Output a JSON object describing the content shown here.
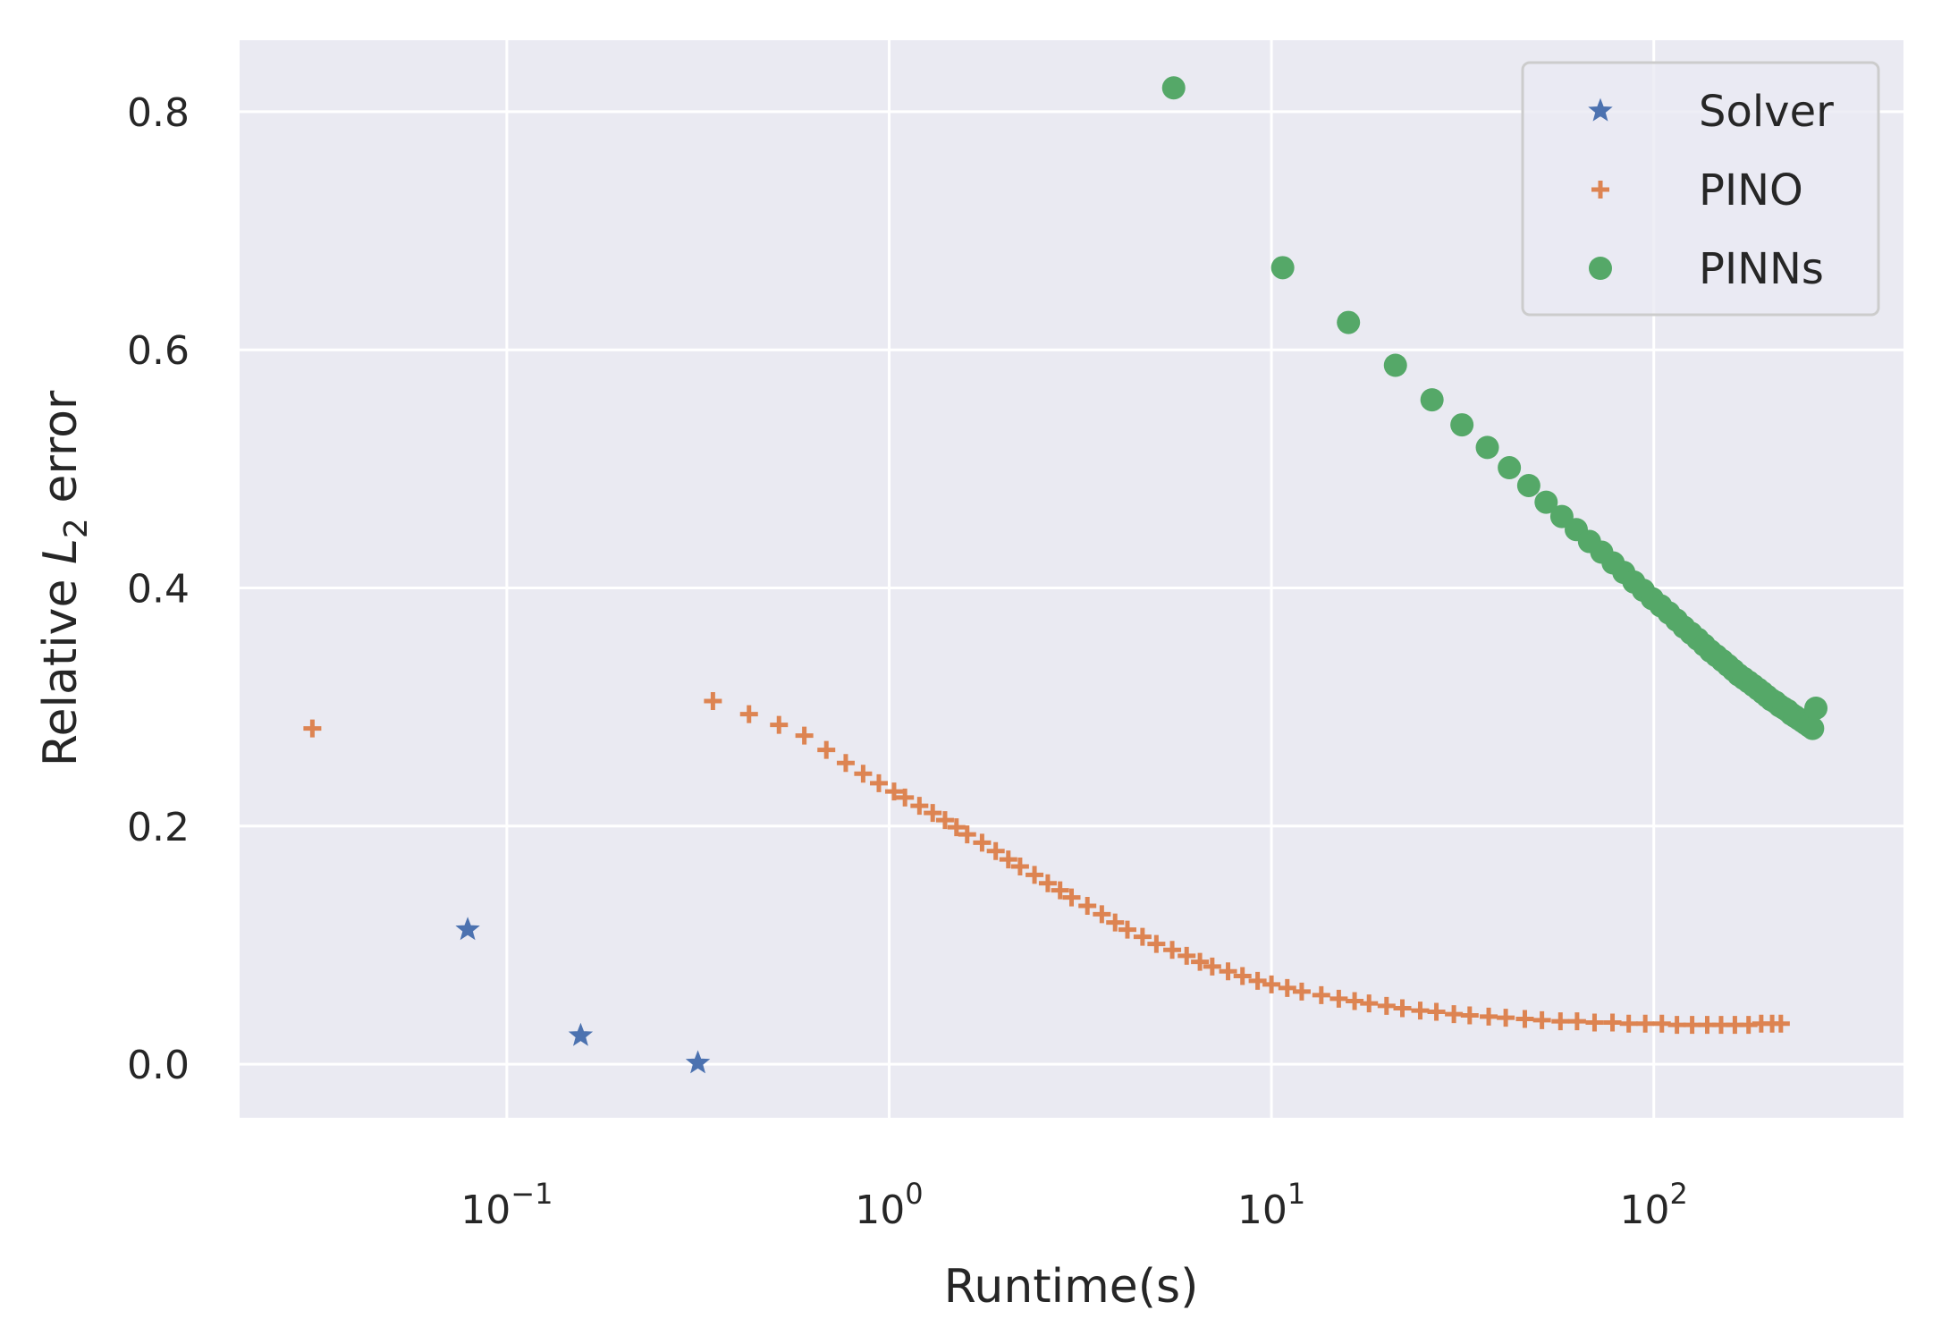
{
  "chart_data": {
    "type": "scatter",
    "xscale": "log",
    "xlim": [
      0.02,
      450
    ],
    "ylim": [
      -0.045,
      0.86
    ],
    "xlabel": "Runtime(s)",
    "ylabel_pre": "Relative ",
    "ylabel_var": "L",
    "ylabel_sub": "2",
    "ylabel_post": " error",
    "grid": true,
    "legend_position": "top-right",
    "x_ticks": [
      {
        "value": 0.1,
        "base": "10",
        "exp": "−1"
      },
      {
        "value": 1,
        "base": "10",
        "exp": "0"
      },
      {
        "value": 10,
        "base": "10",
        "exp": "1"
      },
      {
        "value": 100,
        "base": "10",
        "exp": "2"
      }
    ],
    "y_ticks": [
      {
        "value": 0.0,
        "label": "0.0"
      },
      {
        "value": 0.2,
        "label": "0.2"
      },
      {
        "value": 0.4,
        "label": "0.4"
      },
      {
        "value": 0.6,
        "label": "0.6"
      },
      {
        "value": 0.8,
        "label": "0.8"
      }
    ],
    "series": [
      {
        "name": "Solver",
        "marker": "star",
        "color": "#4c72b0",
        "points": [
          [
            0.079,
            0.113
          ],
          [
            0.156,
            0.024
          ],
          [
            0.316,
            0.001
          ]
        ]
      },
      {
        "name": "PINO",
        "marker": "plus",
        "color": "#dd8452",
        "points": [
          [
            0.031,
            0.282
          ],
          [
            0.346,
            0.305
          ],
          [
            0.43,
            0.294
          ],
          [
            0.515,
            0.285
          ],
          [
            0.6,
            0.276
          ],
          [
            0.685,
            0.264
          ],
          [
            0.77,
            0.253
          ],
          [
            0.855,
            0.244
          ],
          [
            0.94,
            0.236
          ],
          [
            1.03,
            0.229
          ],
          [
            1.1,
            0.224
          ],
          [
            1.2,
            0.217
          ],
          [
            1.3,
            0.211
          ],
          [
            1.4,
            0.205
          ],
          [
            1.5,
            0.199
          ],
          [
            1.6,
            0.193
          ],
          [
            1.75,
            0.186
          ],
          [
            1.9,
            0.179
          ],
          [
            2.05,
            0.172
          ],
          [
            2.2,
            0.166
          ],
          [
            2.4,
            0.159
          ],
          [
            2.6,
            0.152
          ],
          [
            2.8,
            0.146
          ],
          [
            3.0,
            0.14
          ],
          [
            3.3,
            0.133
          ],
          [
            3.6,
            0.126
          ],
          [
            3.9,
            0.119
          ],
          [
            4.2,
            0.113
          ],
          [
            4.6,
            0.107
          ],
          [
            5.0,
            0.101
          ],
          [
            5.5,
            0.096
          ],
          [
            6.0,
            0.091
          ],
          [
            6.5,
            0.086
          ],
          [
            7.0,
            0.082
          ],
          [
            7.7,
            0.078
          ],
          [
            8.4,
            0.074
          ],
          [
            9.2,
            0.07
          ],
          [
            10.0,
            0.067
          ],
          [
            11,
            0.064
          ],
          [
            12,
            0.061
          ],
          [
            13.5,
            0.058
          ],
          [
            15,
            0.055
          ],
          [
            16.5,
            0.053
          ],
          [
            18,
            0.051
          ],
          [
            20,
            0.049
          ],
          [
            22,
            0.047
          ],
          [
            24.5,
            0.045
          ],
          [
            27,
            0.044
          ],
          [
            30,
            0.042
          ],
          [
            33,
            0.041
          ],
          [
            37,
            0.04
          ],
          [
            41,
            0.039
          ],
          [
            46,
            0.038
          ],
          [
            51,
            0.037
          ],
          [
            57,
            0.036
          ],
          [
            63,
            0.036
          ],
          [
            70,
            0.035
          ],
          [
            78,
            0.035
          ],
          [
            86,
            0.034
          ],
          [
            95,
            0.034
          ],
          [
            105,
            0.034
          ],
          [
            115,
            0.033
          ],
          [
            126,
            0.033
          ],
          [
            138,
            0.033
          ],
          [
            150,
            0.033
          ],
          [
            163,
            0.033
          ],
          [
            177,
            0.033
          ],
          [
            191,
            0.034
          ],
          [
            204,
            0.034
          ],
          [
            215,
            0.034
          ]
        ]
      },
      {
        "name": "PINNs",
        "marker": "circle",
        "color": "#55a868",
        "points": [
          [
            5.55,
            0.82
          ],
          [
            10.7,
            0.669
          ],
          [
            15.9,
            0.623
          ],
          [
            21.1,
            0.587
          ],
          [
            26.3,
            0.558
          ],
          [
            31.5,
            0.537
          ],
          [
            36.7,
            0.518
          ],
          [
            41.9,
            0.501
          ],
          [
            47.1,
            0.486
          ],
          [
            52.3,
            0.472
          ],
          [
            57.5,
            0.46
          ],
          [
            62.7,
            0.449
          ],
          [
            67.9,
            0.439
          ],
          [
            73.1,
            0.43
          ],
          [
            78.3,
            0.421
          ],
          [
            83.5,
            0.413
          ],
          [
            88.7,
            0.405
          ],
          [
            93.9,
            0.398
          ],
          [
            99.1,
            0.391
          ],
          [
            104.3,
            0.385
          ],
          [
            109.5,
            0.379
          ],
          [
            114.7,
            0.373
          ],
          [
            119.9,
            0.367
          ],
          [
            125.1,
            0.362
          ],
          [
            130.3,
            0.357
          ],
          [
            135.5,
            0.352
          ],
          [
            140.7,
            0.347
          ],
          [
            145.9,
            0.343
          ],
          [
            151.1,
            0.339
          ],
          [
            156.3,
            0.335
          ],
          [
            161.5,
            0.331
          ],
          [
            166.7,
            0.327
          ],
          [
            171.9,
            0.324
          ],
          [
            177.1,
            0.321
          ],
          [
            182.3,
            0.318
          ],
          [
            187.5,
            0.315
          ],
          [
            192.7,
            0.312
          ],
          [
            197.9,
            0.309
          ],
          [
            203.1,
            0.306
          ],
          [
            208.3,
            0.304
          ],
          [
            213.5,
            0.301
          ],
          [
            218.7,
            0.299
          ],
          [
            223.9,
            0.297
          ],
          [
            229.1,
            0.294
          ],
          [
            234.3,
            0.292
          ],
          [
            239.5,
            0.29
          ],
          [
            244.7,
            0.288
          ],
          [
            249.9,
            0.286
          ],
          [
            255.1,
            0.284
          ],
          [
            260.3,
            0.282
          ],
          [
            265.5,
            0.299
          ]
        ]
      }
    ]
  }
}
